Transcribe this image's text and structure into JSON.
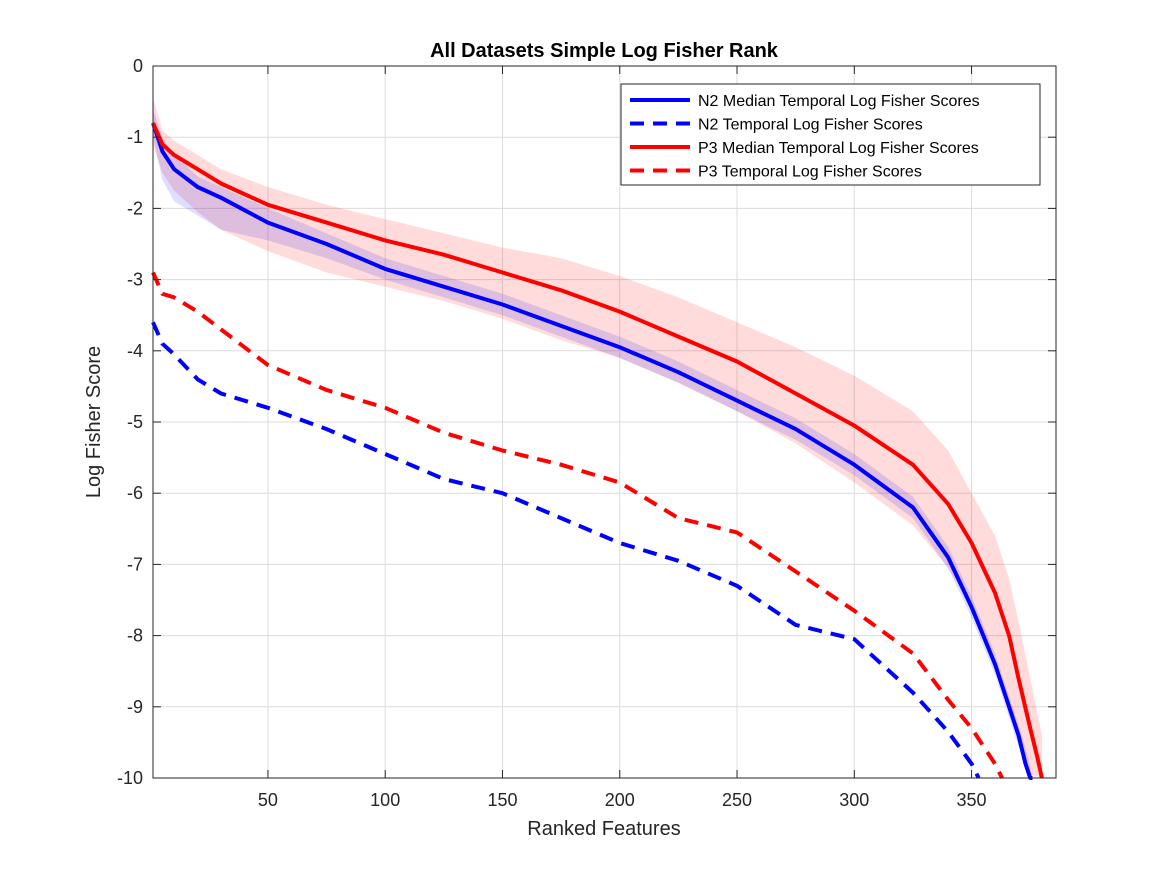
{
  "chart_data": {
    "type": "line",
    "title": "All Datasets Simple Log Fisher Rank",
    "xlabel": "Ranked Features",
    "ylabel": "Log Fisher Score",
    "xlim": [
      1,
      386
    ],
    "ylim": [
      -10,
      0
    ],
    "xticks": [
      50,
      100,
      150,
      200,
      250,
      300,
      350
    ],
    "yticks": [
      0,
      -1,
      -2,
      -3,
      -4,
      -5,
      -6,
      -7,
      -8,
      -9,
      -10
    ],
    "xtick_labels": [
      "50",
      "100",
      "150",
      "200",
      "250",
      "300",
      "350"
    ],
    "ytick_labels": [
      "0",
      "-1",
      "-2",
      "-3",
      "-4",
      "-5",
      "-6",
      "-7",
      "-8",
      "-9",
      "-10"
    ],
    "grid": true,
    "legend_position": "top-right",
    "series": [
      {
        "name": "N2 Median Temporal Log Fisher Scores",
        "color": "#0000FF",
        "style": "solid",
        "x": [
          1,
          5,
          10,
          20,
          30,
          50,
          75,
          100,
          125,
          150,
          175,
          200,
          225,
          250,
          275,
          300,
          325,
          340,
          350,
          360,
          366,
          370,
          373,
          375,
          376
        ],
        "y": [
          -0.8,
          -1.2,
          -1.45,
          -1.7,
          -1.85,
          -2.2,
          -2.5,
          -2.85,
          -3.1,
          -3.35,
          -3.65,
          -3.95,
          -4.3,
          -4.7,
          -5.1,
          -5.6,
          -6.2,
          -6.9,
          -7.6,
          -8.4,
          -9.0,
          -9.4,
          -9.8,
          -10.0,
          -10.0
        ]
      },
      {
        "name": "N2 Temporal Log Fisher Scores",
        "color": "#0000FF",
        "style": "dashed",
        "x": [
          1,
          5,
          10,
          20,
          30,
          50,
          75,
          100,
          125,
          150,
          175,
          200,
          225,
          250,
          275,
          300,
          325,
          340,
          350,
          353
        ],
        "y": [
          -3.6,
          -3.9,
          -4.05,
          -4.4,
          -4.6,
          -4.8,
          -5.1,
          -5.45,
          -5.8,
          -6.0,
          -6.35,
          -6.7,
          -6.95,
          -7.3,
          -7.85,
          -8.05,
          -8.8,
          -9.35,
          -9.8,
          -10.0
        ]
      },
      {
        "name": "P3 Median Temporal Log Fisher Scores",
        "color": "#FF0000",
        "style": "solid",
        "x": [
          1,
          5,
          10,
          20,
          30,
          50,
          75,
          100,
          125,
          150,
          175,
          200,
          225,
          250,
          275,
          300,
          325,
          340,
          350,
          360,
          366,
          370,
          375,
          378,
          380
        ],
        "y": [
          -0.8,
          -1.1,
          -1.25,
          -1.45,
          -1.65,
          -1.95,
          -2.2,
          -2.45,
          -2.65,
          -2.9,
          -3.15,
          -3.45,
          -3.8,
          -4.15,
          -4.6,
          -5.05,
          -5.6,
          -6.15,
          -6.7,
          -7.4,
          -8.0,
          -8.6,
          -9.3,
          -9.7,
          -10.0
        ]
      },
      {
        "name": "P3 Temporal Log Fisher Scores",
        "color": "#FF0000",
        "style": "dashed",
        "x": [
          1,
          5,
          10,
          20,
          30,
          50,
          75,
          100,
          125,
          150,
          175,
          200,
          225,
          250,
          275,
          300,
          325,
          340,
          350,
          360,
          363
        ],
        "y": [
          -2.9,
          -3.2,
          -3.25,
          -3.45,
          -3.7,
          -4.2,
          -4.55,
          -4.8,
          -5.15,
          -5.4,
          -5.6,
          -5.85,
          -6.35,
          -6.55,
          -7.1,
          -7.65,
          -8.25,
          -8.9,
          -9.3,
          -9.8,
          -10.0
        ]
      }
    ],
    "bands": [
      {
        "color": "#FF0000",
        "opacity": 0.14,
        "x": [
          1,
          5,
          10,
          20,
          30,
          50,
          75,
          100,
          125,
          150,
          175,
          200,
          225,
          250,
          275,
          300,
          325,
          340,
          350,
          360,
          366,
          370,
          375,
          380
        ],
        "upper": [
          -0.45,
          -0.9,
          -1.05,
          -1.25,
          -1.45,
          -1.7,
          -1.95,
          -2.15,
          -2.35,
          -2.55,
          -2.7,
          -2.95,
          -3.25,
          -3.6,
          -3.95,
          -4.35,
          -4.85,
          -5.4,
          -6.0,
          -6.6,
          -7.2,
          -7.8,
          -8.6,
          -9.4
        ],
        "lower": [
          -1.1,
          -1.5,
          -1.75,
          -2.05,
          -2.3,
          -2.6,
          -2.9,
          -3.1,
          -3.3,
          -3.55,
          -3.85,
          -4.1,
          -4.45,
          -4.85,
          -5.3,
          -5.85,
          -6.45,
          -7.05,
          -7.6,
          -8.3,
          -8.9,
          -9.4,
          -9.95,
          -10.0
        ]
      },
      {
        "color": "#0000FF",
        "opacity": 0.13,
        "x": [
          1,
          5,
          10,
          20,
          30,
          50,
          75,
          100,
          125,
          150,
          175,
          200,
          225,
          250,
          275,
          300,
          325,
          340,
          350,
          360,
          366,
          370,
          374,
          376
        ],
        "upper": [
          -0.6,
          -1.0,
          -1.25,
          -1.55,
          -1.7,
          -2.0,
          -2.35,
          -2.7,
          -2.95,
          -3.2,
          -3.5,
          -3.8,
          -4.15,
          -4.55,
          -4.95,
          -5.45,
          -6.05,
          -6.75,
          -7.45,
          -8.25,
          -8.85,
          -9.25,
          -9.7,
          -10.0
        ],
        "lower": [
          -1.0,
          -1.6,
          -1.9,
          -2.1,
          -2.3,
          -2.45,
          -2.7,
          -3.0,
          -3.25,
          -3.5,
          -3.8,
          -4.1,
          -4.45,
          -4.85,
          -5.25,
          -5.75,
          -6.35,
          -7.05,
          -7.75,
          -8.55,
          -9.15,
          -9.55,
          -9.9,
          -10.0
        ]
      }
    ]
  }
}
